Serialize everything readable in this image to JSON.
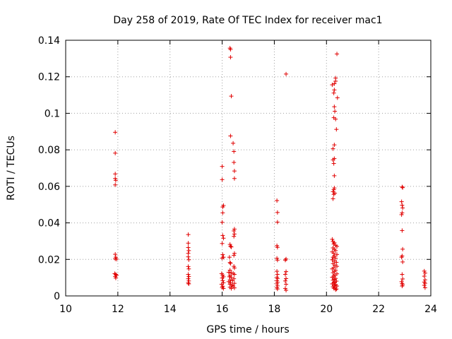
{
  "chart_data": {
    "type": "scatter",
    "title": "Day 258 of 2019, Rate Of TEC Index for receiver mac1",
    "xlabel": "GPS time / hours",
    "ylabel": "ROTI / TECUs",
    "xlim": [
      10,
      24
    ],
    "ylim": [
      0,
      0.14
    ],
    "xticks": [
      10,
      12,
      14,
      16,
      18,
      20,
      22,
      24
    ],
    "yticks": [
      0,
      0.02,
      0.04,
      0.06,
      0.08,
      0.1,
      0.12,
      0.14
    ],
    "xtick_labels": [
      "10",
      "12",
      "14",
      "16",
      "18",
      "20",
      "22",
      "24"
    ],
    "ytick_labels": [
      "0",
      "0.02",
      "0.04",
      "0.06",
      "0.08",
      "0.1",
      "0.12",
      "0.14"
    ],
    "grid": true,
    "marker": "+",
    "color": "#e00000",
    "series": [
      {
        "name": "mac1",
        "points": [
          [
            11.9,
            0.0896
          ],
          [
            11.9,
            0.0782
          ],
          [
            11.9,
            0.0668
          ],
          [
            11.9,
            0.0643
          ],
          [
            11.92,
            0.0633
          ],
          [
            11.9,
            0.0608
          ],
          [
            11.9,
            0.0228
          ],
          [
            11.92,
            0.0212
          ],
          [
            11.9,
            0.0203
          ],
          [
            11.95,
            0.0201
          ],
          [
            11.88,
            0.0122
          ],
          [
            11.92,
            0.0118
          ],
          [
            11.95,
            0.0113
          ],
          [
            11.9,
            0.0107
          ],
          [
            11.92,
            0.0098
          ],
          [
            14.7,
            0.0336
          ],
          [
            14.7,
            0.0289
          ],
          [
            14.7,
            0.0265
          ],
          [
            14.72,
            0.0248
          ],
          [
            14.7,
            0.0233
          ],
          [
            14.7,
            0.0214
          ],
          [
            14.72,
            0.0198
          ],
          [
            14.7,
            0.0161
          ],
          [
            14.72,
            0.0148
          ],
          [
            14.7,
            0.0118
          ],
          [
            14.72,
            0.0106
          ],
          [
            14.7,
            0.0094
          ],
          [
            14.72,
            0.0082
          ],
          [
            14.7,
            0.0071
          ],
          [
            14.72,
            0.0066
          ],
          [
            16.0,
            0.0709
          ],
          [
            16.0,
            0.0637
          ],
          [
            16.05,
            0.0495
          ],
          [
            16.02,
            0.0487
          ],
          [
            16.02,
            0.0455
          ],
          [
            16.0,
            0.0403
          ],
          [
            16.02,
            0.0331
          ],
          [
            16.05,
            0.0316
          ],
          [
            16.0,
            0.0287
          ],
          [
            16.02,
            0.0226
          ],
          [
            16.05,
            0.0212
          ],
          [
            16.0,
            0.0207
          ],
          [
            15.98,
            0.0122
          ],
          [
            16.02,
            0.0114
          ],
          [
            16.05,
            0.0105
          ],
          [
            16.0,
            0.0098
          ],
          [
            16.02,
            0.0084
          ],
          [
            16.05,
            0.0072
          ],
          [
            15.98,
            0.0064
          ],
          [
            16.02,
            0.0053
          ],
          [
            16.0,
            0.0046
          ],
          [
            16.05,
            0.0041
          ],
          [
            16.3,
            0.1357
          ],
          [
            16.32,
            0.135
          ],
          [
            16.32,
            0.1307
          ],
          [
            16.35,
            0.1094
          ],
          [
            16.32,
            0.0876
          ],
          [
            16.42,
            0.0836
          ],
          [
            16.45,
            0.0791
          ],
          [
            16.45,
            0.0731
          ],
          [
            16.47,
            0.0684
          ],
          [
            16.47,
            0.0643
          ],
          [
            16.47,
            0.0366
          ],
          [
            16.45,
            0.0356
          ],
          [
            16.47,
            0.0339
          ],
          [
            16.45,
            0.0326
          ],
          [
            16.3,
            0.0282
          ],
          [
            16.32,
            0.0272
          ],
          [
            16.35,
            0.0268
          ],
          [
            16.47,
            0.0233
          ],
          [
            16.45,
            0.0222
          ],
          [
            16.28,
            0.0212
          ],
          [
            16.3,
            0.0183
          ],
          [
            16.32,
            0.0178
          ],
          [
            16.45,
            0.0162
          ],
          [
            16.47,
            0.0153
          ],
          [
            16.3,
            0.0141
          ],
          [
            16.25,
            0.0129
          ],
          [
            16.35,
            0.0126
          ],
          [
            16.42,
            0.0124
          ],
          [
            16.47,
            0.0118
          ],
          [
            16.3,
            0.0112
          ],
          [
            16.28,
            0.0105
          ],
          [
            16.35,
            0.0102
          ],
          [
            16.45,
            0.0094
          ],
          [
            16.3,
            0.0088
          ],
          [
            16.4,
            0.0084
          ],
          [
            16.25,
            0.0078
          ],
          [
            16.32,
            0.0073
          ],
          [
            16.47,
            0.0069
          ],
          [
            16.3,
            0.0064
          ],
          [
            16.38,
            0.0058
          ],
          [
            16.42,
            0.0054
          ],
          [
            16.3,
            0.0048
          ],
          [
            16.47,
            0.0044
          ],
          [
            16.35,
            0.0041
          ],
          [
            18.1,
            0.0522
          ],
          [
            18.12,
            0.0457
          ],
          [
            18.12,
            0.0404
          ],
          [
            18.1,
            0.0275
          ],
          [
            18.12,
            0.0266
          ],
          [
            18.1,
            0.0206
          ],
          [
            18.12,
            0.0196
          ],
          [
            18.1,
            0.0135
          ],
          [
            18.12,
            0.0118
          ],
          [
            18.1,
            0.0102
          ],
          [
            18.12,
            0.0095
          ],
          [
            18.1,
            0.0084
          ],
          [
            18.12,
            0.0075
          ],
          [
            18.1,
            0.0066
          ],
          [
            18.12,
            0.0055
          ],
          [
            18.1,
            0.0045
          ],
          [
            18.12,
            0.0038
          ],
          [
            18.45,
            0.1215
          ],
          [
            18.45,
            0.0202
          ],
          [
            18.42,
            0.0196
          ],
          [
            18.45,
            0.0133
          ],
          [
            18.42,
            0.0118
          ],
          [
            18.45,
            0.0095
          ],
          [
            18.42,
            0.0082
          ],
          [
            18.45,
            0.0064
          ],
          [
            18.42,
            0.0041
          ],
          [
            18.45,
            0.0031
          ],
          [
            20.4,
            0.1325
          ],
          [
            20.35,
            0.1193
          ],
          [
            20.35,
            0.1176
          ],
          [
            20.3,
            0.1162
          ],
          [
            20.22,
            0.1156
          ],
          [
            20.3,
            0.1128
          ],
          [
            20.28,
            0.1111
          ],
          [
            20.42,
            0.1085
          ],
          [
            20.3,
            0.1036
          ],
          [
            20.32,
            0.1011
          ],
          [
            20.28,
            0.0976
          ],
          [
            20.35,
            0.0968
          ],
          [
            20.38,
            0.0912
          ],
          [
            20.3,
            0.0827
          ],
          [
            20.25,
            0.0806
          ],
          [
            20.3,
            0.0752
          ],
          [
            20.25,
            0.0745
          ],
          [
            20.28,
            0.0725
          ],
          [
            20.3,
            0.0658
          ],
          [
            20.3,
            0.0591
          ],
          [
            20.28,
            0.0582
          ],
          [
            20.25,
            0.0571
          ],
          [
            20.32,
            0.0563
          ],
          [
            20.28,
            0.0556
          ],
          [
            20.25,
            0.0532
          ],
          [
            20.22,
            0.031
          ],
          [
            20.25,
            0.0298
          ],
          [
            20.3,
            0.0291
          ],
          [
            20.28,
            0.0284
          ],
          [
            20.35,
            0.0277
          ],
          [
            20.4,
            0.0271
          ],
          [
            20.25,
            0.0263
          ],
          [
            20.3,
            0.0255
          ],
          [
            20.35,
            0.0248
          ],
          [
            20.22,
            0.0241
          ],
          [
            20.28,
            0.0233
          ],
          [
            20.4,
            0.0227
          ],
          [
            20.3,
            0.0219
          ],
          [
            20.25,
            0.0212
          ],
          [
            20.35,
            0.0206
          ],
          [
            20.22,
            0.0198
          ],
          [
            20.3,
            0.0191
          ],
          [
            20.38,
            0.0184
          ],
          [
            20.25,
            0.0177
          ],
          [
            20.32,
            0.0169
          ],
          [
            20.4,
            0.0162
          ],
          [
            20.28,
            0.0155
          ],
          [
            20.22,
            0.0148
          ],
          [
            20.35,
            0.0141
          ],
          [
            20.3,
            0.0134
          ],
          [
            20.25,
            0.0127
          ],
          [
            20.4,
            0.0121
          ],
          [
            20.32,
            0.0114
          ],
          [
            20.28,
            0.0108
          ],
          [
            20.22,
            0.0102
          ],
          [
            20.35,
            0.0096
          ],
          [
            20.3,
            0.0091
          ],
          [
            20.25,
            0.0086
          ],
          [
            20.38,
            0.0081
          ],
          [
            20.32,
            0.0076
          ],
          [
            20.28,
            0.0071
          ],
          [
            20.22,
            0.0066
          ],
          [
            20.35,
            0.0062
          ],
          [
            20.3,
            0.0058
          ],
          [
            20.4,
            0.0054
          ],
          [
            20.25,
            0.005
          ],
          [
            20.32,
            0.0046
          ],
          [
            20.28,
            0.0042
          ],
          [
            20.38,
            0.0038
          ],
          [
            20.35,
            0.0034
          ],
          [
            22.9,
            0.0597
          ],
          [
            22.92,
            0.0593
          ],
          [
            22.88,
            0.0516
          ],
          [
            22.9,
            0.0497
          ],
          [
            22.92,
            0.0482
          ],
          [
            22.9,
            0.0455
          ],
          [
            22.88,
            0.0445
          ],
          [
            22.9,
            0.0358
          ],
          [
            22.92,
            0.0256
          ],
          [
            22.9,
            0.0219
          ],
          [
            22.88,
            0.0212
          ],
          [
            22.92,
            0.0186
          ],
          [
            22.9,
            0.0118
          ],
          [
            22.92,
            0.0093
          ],
          [
            22.88,
            0.0078
          ],
          [
            22.9,
            0.0068
          ],
          [
            22.92,
            0.0061
          ],
          [
            22.9,
            0.0054
          ],
          [
            23.75,
            0.0136
          ],
          [
            23.78,
            0.0125
          ],
          [
            23.75,
            0.0108
          ],
          [
            23.78,
            0.0088
          ],
          [
            23.75,
            0.0076
          ],
          [
            23.78,
            0.0069
          ],
          [
            23.75,
            0.0058
          ],
          [
            23.78,
            0.0045
          ]
        ]
      }
    ]
  }
}
